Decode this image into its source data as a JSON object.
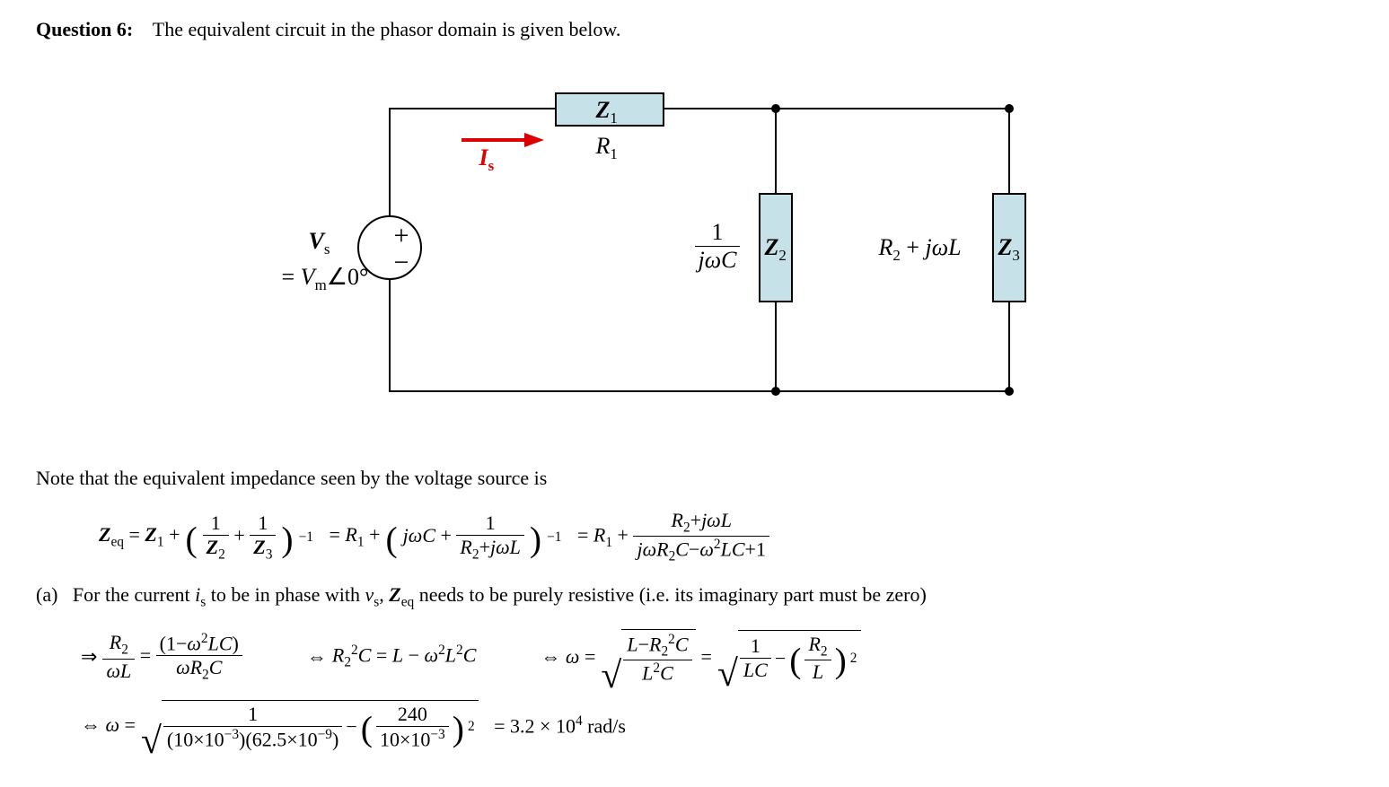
{
  "question": {
    "label": "Question 6:",
    "prompt": "The equivalent circuit in the phasor domain is given below."
  },
  "circuit": {
    "source_label_html": "<span class='mb'>V</span><span class='sub mi'>s</span>",
    "source_value_html": "= <span class='mi'>V</span><span class='sub mi'>m</span>∠0°",
    "source_plus": "+",
    "source_minus": "−",
    "current_label_html": "<span class='mb'>I</span><span class='sub mi'>s</span>",
    "z1_label_html": "<span class='mb'>Z</span><span class='sub'>1</span>",
    "z1_value_html": "<span class='mi'>R</span><span class='sub'>1</span>",
    "z2_label_html": "<span class='mb'>Z</span><span class='sub'>2</span>",
    "z2_value_html": "<span class='frac'><span class='num'>1</span><span class='den'><span class='mi'>jωC</span></span></span>",
    "z3_label_html": "<span class='mb'>Z</span><span class='sub'>3</span>",
    "z3_value_html": "<span class='mi'>R</span><span class='sub'>2</span> + <span class='mi'>jωL</span>",
    "colors": {
      "box_fill": "#c6e2e8",
      "box_stroke": "#000000",
      "wire": "#000000",
      "current_arrow": "#dd0000"
    }
  },
  "note_text": "Note that the equivalent impedance seen by the voltage source is",
  "zeq_equation": {
    "lhs_html": "<span class='mb'>Z</span><span class='sub mi'>eq</span> = <span class='mb'>Z</span><span class='sub'>1</span> +",
    "paren1_html": "<span class='frac'><span class='num'>1</span><span class='den'><span class='mb'>Z</span><span class='sub'>2</span></span></span> + <span class='frac'><span class='num'>1</span><span class='den'><span class='mb'>Z</span><span class='sub'>3</span></span></span>",
    "exp1": "−1",
    "mid_html": "= <span class='mi'>R</span><span class='sub'>1</span> +",
    "paren2_html": "<span class='mi'>jωC</span> + <span class='frac'><span class='num'>1</span><span class='den'><span class='mi'>R</span><span class='sub'>2</span>+<span class='mi'>jωL</span></span></span>",
    "exp2": "−1",
    "rhs_html": "= <span class='mi'>R</span><span class='sub'>1</span> + <span class='frac'><span class='num'><span class='mi'>R</span><span class='sub'>2</span>+<span class='mi'>jωL</span></span><span class='den'><span class='mi'>jωR</span><span class='sub'>2</span><span class='mi'>C</span>−<span class='mi'>ω</span><span class='sup'>2</span><span class='mi'>LC</span>+1</span></span>"
  },
  "part_a": {
    "label": "(a)",
    "text_html": "For the current <span class='mi'>i</span><span class='sub mi'>s</span> to be in phase with <span class='mi'>v</span><span class='sub mi'>s</span>, <span class='mb'>Z</span><span class='sub mi'>eq</span> needs to be purely resistive (i.e. its imaginary part must be zero)"
  },
  "eq_row1": {
    "arrow1": "⇒",
    "frac1_html": "<span class='frac'><span class='num'><span class='mi'>R</span><span class='sub'>2</span></span><span class='den'><span class='mi'>ωL</span></span></span> = <span class='frac'><span class='num'>(1−<span class='mi'>ω</span><span class='sup'>2</span><span class='mi'>LC</span>)</span><span class='den'><span class='mi'>ωR</span><span class='sub'>2</span><span class='mi'>C</span></span></span>",
    "arrow2": "⇔",
    "mid_html": "<span class='mi'>R</span><span class='sub'>2</span><span class='sup'>2</span><span class='mi'>C</span> = <span class='mi'>L</span> − <span class='mi'>ω</span><span class='sup'>2</span><span class='mi'>L</span><span class='sup'>2</span><span class='mi'>C</span>",
    "arrow3": "⇔ <span class='mi'>ω</span> =",
    "sqrt1_html": "<span class='frac'><span class='num'><span class='mi'>L</span>−<span class='mi'>R</span><span class='sub'>2</span><span class='sup'>2</span><span class='mi'>C</span></span><span class='den'><span class='mi'>L</span><span class='sup'>2</span><span class='mi'>C</span></span></span>",
    "eq": "=",
    "sqrt2_html": "<span class='frac'><span class='num'>1</span><span class='den'><span class='mi'>LC</span></span></span> − <span class='bigparen'>(</span><span class='frac'><span class='num'><span class='mi'>R</span><span class='sub'>2</span></span><span class='den'><span class='mi'>L</span></span></span><span class='bigparen'>)</span><span class='sup'>2</span>"
  },
  "eq_row2": {
    "arrow": "⇔ <span class='mi'>ω</span> =",
    "sqrt_html": "<span class='frac'><span class='num'>1</span><span class='den'>(10×10<span class='sup'>−3</span>)(62.5×10<span class='sup'>−9</span>)</span></span> − <span class='bigparen'>(</span><span class='frac'><span class='num'>240</span><span class='den'>10×10<span class='sup'>−3</span></span></span><span class='bigparen'>)</span><span class='sup'>2</span>",
    "result_html": "= 3.2 × 10<span class='sup'>4</span> rad/s"
  },
  "values": {
    "L": "10×10⁻³",
    "C": "62.5×10⁻⁹",
    "R2": "240",
    "omega_result": "3.2 × 10⁴",
    "omega_unit": "rad/s"
  }
}
